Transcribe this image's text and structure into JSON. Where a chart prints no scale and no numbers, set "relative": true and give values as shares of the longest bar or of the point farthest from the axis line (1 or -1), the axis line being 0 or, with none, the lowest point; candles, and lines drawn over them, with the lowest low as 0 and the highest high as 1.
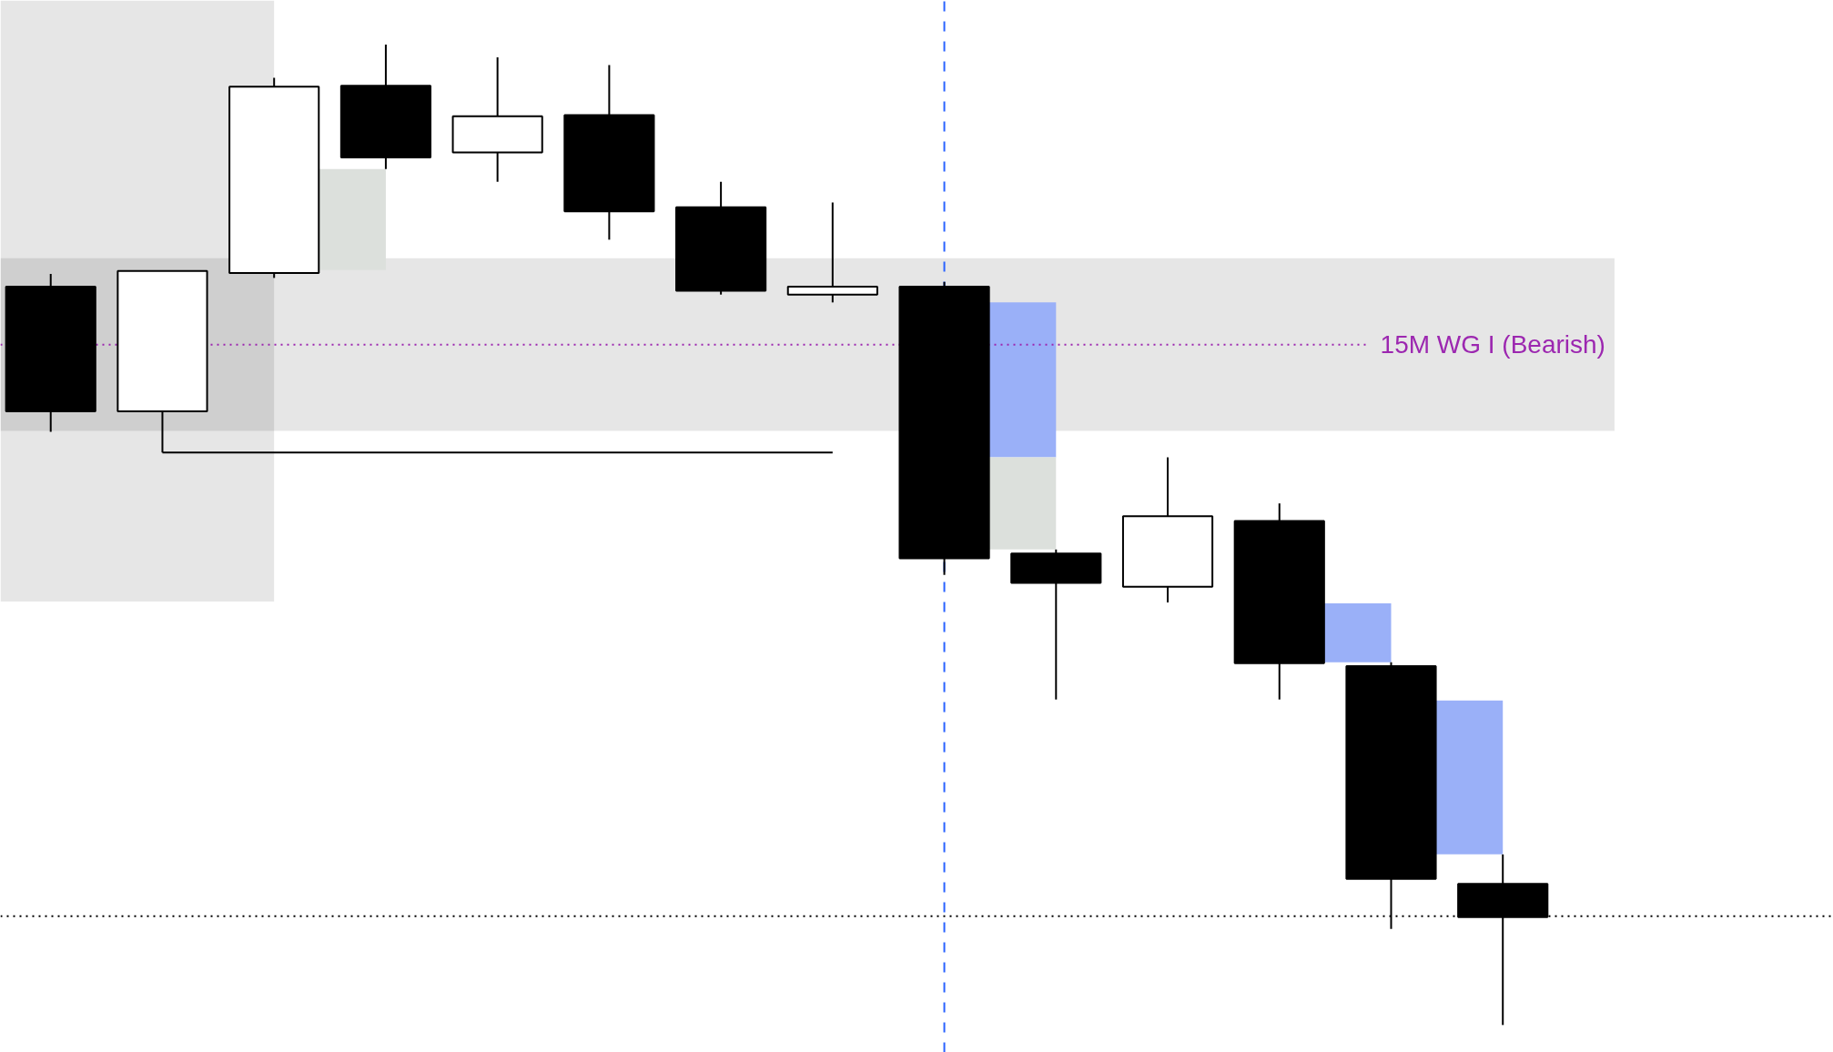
{
  "chart_data": {
    "type": "candlestick",
    "relative": true,
    "tick_labels": false,
    "categories": [
      null,
      null,
      null,
      null,
      null,
      null,
      null,
      null,
      null,
      null,
      null,
      null,
      null,
      null
    ],
    "ohlc": [
      [
        0.753,
        0.766,
        0.605,
        0.626
      ],
      [
        0.626,
        0.769,
        0.584,
        0.769
      ],
      [
        0.767,
        0.966,
        0.762,
        0.957
      ],
      [
        0.958,
        1.0,
        0.873,
        0.885
      ],
      [
        0.89,
        0.987,
        0.86,
        0.927
      ],
      [
        0.928,
        0.979,
        0.801,
        0.83
      ],
      [
        0.834,
        0.86,
        0.745,
        0.749
      ],
      [
        0.745,
        0.839,
        0.737,
        0.753
      ],
      [
        0.753,
        0.758,
        0.459,
        0.476
      ],
      [
        0.481,
        0.485,
        0.332,
        0.451
      ],
      [
        0.447,
        0.579,
        0.431,
        0.519
      ],
      [
        0.514,
        0.532,
        0.332,
        0.369
      ],
      [
        0.366,
        0.37,
        0.098,
        0.149
      ],
      [
        0.144,
        0.174,
        0,
        0.11
      ]
    ],
    "colors": [
      "#000000",
      "#ffffff",
      "#ffffff",
      "#000000",
      "#ffffff",
      "#000000",
      "#000000",
      "#ffffff",
      "#000000",
      "#000000",
      "#ffffff",
      "#000000",
      "#000000",
      "#000000"
    ],
    "series": [
      {
        "type": "line",
        "color": "#000000",
        "values": [
          null,
          0.584,
          0.584,
          0.584,
          0.584,
          0.584,
          0.584,
          0.584,
          null,
          null,
          null,
          null,
          null,
          null
        ]
      },
      {
        "type": "bar",
        "color": "#9ab0f8",
        "base": [
          null,
          null,
          null,
          null,
          null,
          null,
          null,
          null,
          null,
          0.579,
          null,
          null,
          0.37,
          0.174
        ],
        "values": [
          null,
          null,
          null,
          null,
          null,
          null,
          null,
          null,
          null,
          0.158,
          null,
          null,
          0.06,
          0.157
        ]
      },
      {
        "type": "bar",
        "color": "#dce0dc",
        "base": [
          null,
          null,
          null,
          0.77,
          null,
          null,
          null,
          null,
          null,
          0.485,
          null,
          null,
          null,
          null
        ],
        "values": [
          null,
          null,
          null,
          0.103,
          null,
          null,
          null,
          null,
          null,
          0.094,
          null,
          null,
          null,
          null
        ]
      }
    ],
    "bands": [
      {
        "axis": "y",
        "from": 0.432,
        "to": 1.045,
        "color": "#e6e6e6"
      },
      {
        "axis": "y",
        "from": 0.606,
        "to": 0.782,
        "color": "#e6e6e6"
      }
    ],
    "ref_lines": [
      {
        "axis": "y",
        "value": 0.694,
        "label": "15M WG I (Bearish)",
        "color": "#9c27b0",
        "line_style": "dotted"
      },
      {
        "axis": "y",
        "value": 0.111,
        "color": "#000000",
        "line_style": "dotted"
      }
    ]
  }
}
